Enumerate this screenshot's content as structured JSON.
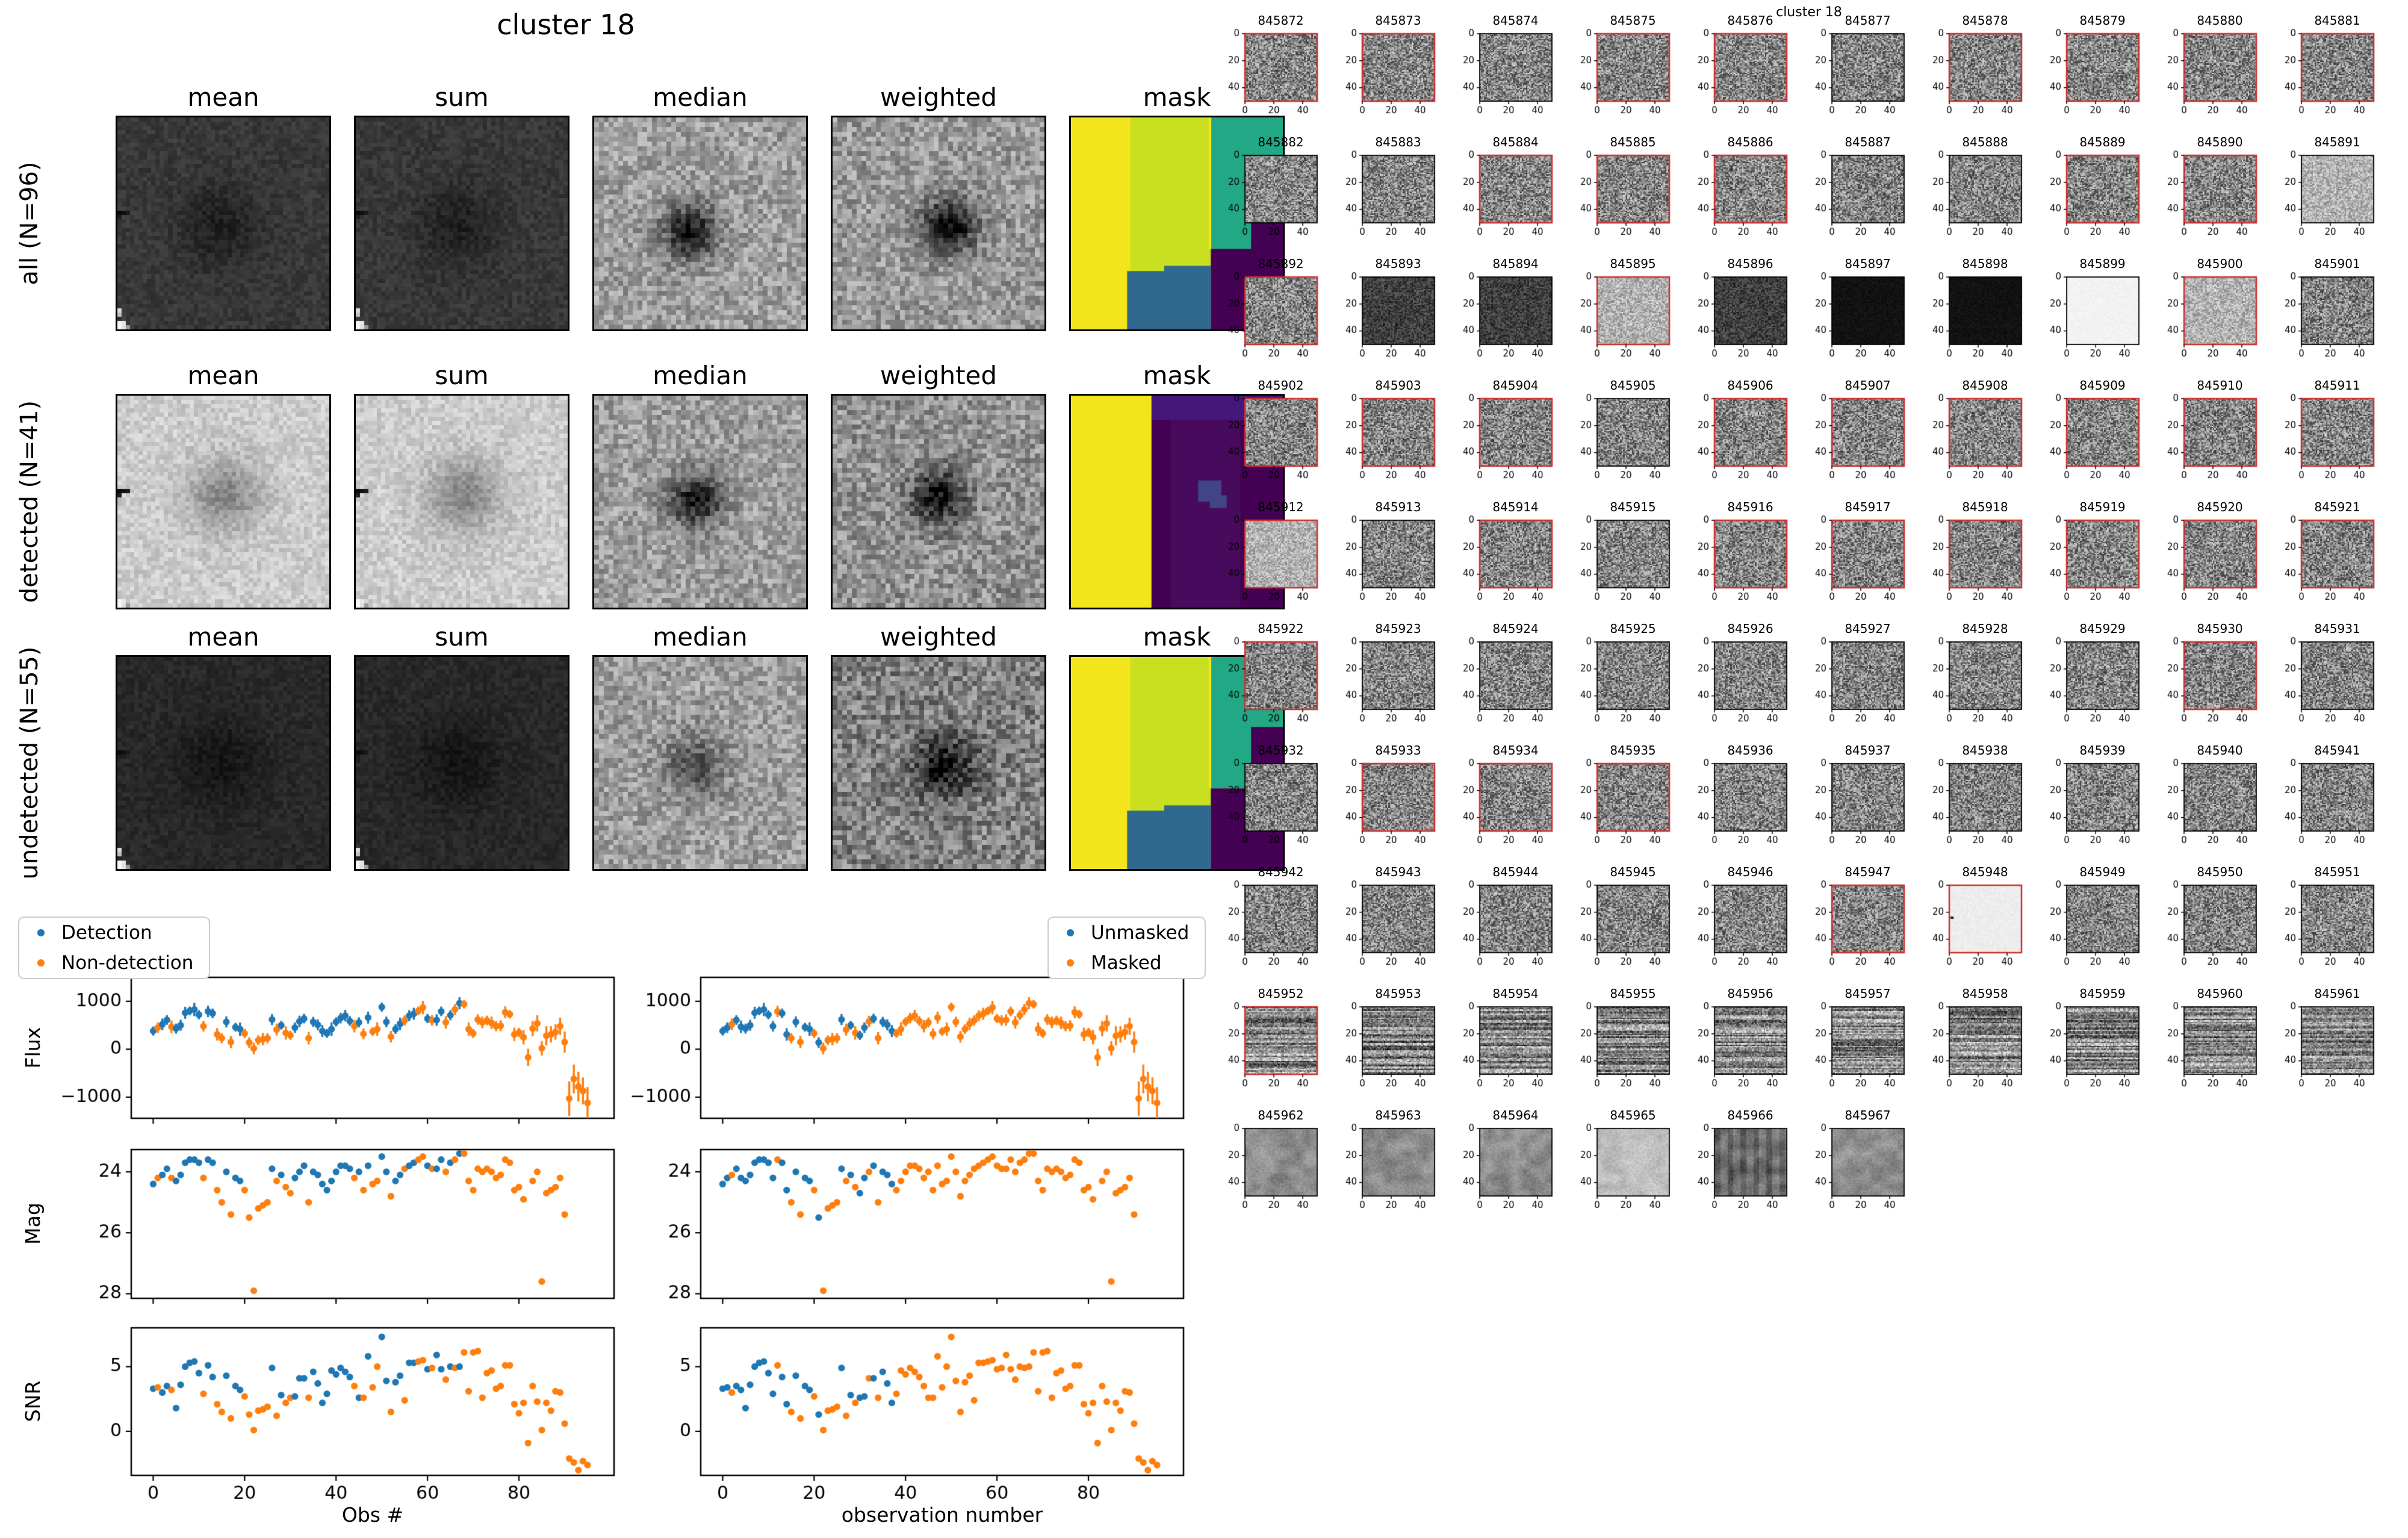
{
  "figures": {
    "stack": {
      "title": "cluster 18",
      "col_headers": [
        "mean",
        "sum",
        "median",
        "weighted",
        "mask"
      ],
      "rows": [
        {
          "label": "all (N=96)",
          "cells": [
            "meanAll",
            "meanAll",
            "medianAll",
            "weightedAll",
            "maskA"
          ]
        },
        {
          "label": "detected (N=41)",
          "cells": [
            "meanDet",
            "meanDet",
            "medianDet",
            "weightedDet",
            "maskB"
          ]
        },
        {
          "label": "undetected (N=55)",
          "cells": [
            "meanUnd",
            "meanUnd",
            "medianUnd",
            "weightedUnd",
            "maskA"
          ]
        }
      ]
    },
    "grid": {
      "title": "cluster 18",
      "xticks": [
        0,
        20,
        40
      ],
      "yticks": [
        0,
        20,
        40
      ],
      "tiles": [
        [
          "845872",
          1
        ],
        [
          "845873",
          1
        ],
        [
          "845874",
          0
        ],
        [
          "845875",
          1
        ],
        [
          "845876",
          1
        ],
        [
          "845877",
          0
        ],
        [
          "845878",
          1
        ],
        [
          "845879",
          1
        ],
        [
          "845880",
          1
        ],
        [
          "845881",
          1
        ],
        [
          "845882",
          0
        ],
        [
          "845883",
          0
        ],
        [
          "845884",
          1
        ],
        [
          "845885",
          1
        ],
        [
          "845886",
          1
        ],
        [
          "845887",
          0
        ],
        [
          "845888",
          0
        ],
        [
          "845889",
          1
        ],
        [
          "845890",
          1
        ],
        [
          "845891",
          0,
          "l"
        ],
        [
          "845892",
          1
        ],
        [
          "845893",
          0,
          "nd"
        ],
        [
          "845894",
          0,
          "nd"
        ],
        [
          "845895",
          1,
          "l"
        ],
        [
          "845896",
          0,
          "nd"
        ],
        [
          "845897",
          0,
          "k"
        ],
        [
          "845898",
          0,
          "k"
        ],
        [
          "845899",
          0,
          "w"
        ],
        [
          "845900",
          1,
          "l"
        ],
        [
          "845901",
          0
        ],
        [
          "845902",
          1
        ],
        [
          "845903",
          1
        ],
        [
          "845904",
          1
        ],
        [
          "845905",
          0
        ],
        [
          "845906",
          1
        ],
        [
          "845907",
          1
        ],
        [
          "845908",
          1
        ],
        [
          "845909",
          1
        ],
        [
          "845910",
          1
        ],
        [
          "845911",
          1
        ],
        [
          "845912",
          1,
          "l"
        ],
        [
          "845913",
          0
        ],
        [
          "845914",
          1
        ],
        [
          "845915",
          0
        ],
        [
          "845916",
          1
        ],
        [
          "845917",
          1
        ],
        [
          "845918",
          1
        ],
        [
          "845919",
          1
        ],
        [
          "845920",
          1
        ],
        [
          "845921",
          1
        ],
        [
          "845922",
          1
        ],
        [
          "845923",
          0
        ],
        [
          "845924",
          0
        ],
        [
          "845925",
          0
        ],
        [
          "845926",
          0
        ],
        [
          "845927",
          0
        ],
        [
          "845928",
          0
        ],
        [
          "845929",
          0
        ],
        [
          "845930",
          1
        ],
        [
          "845931",
          0
        ],
        [
          "845932",
          0
        ],
        [
          "845933",
          1
        ],
        [
          "845934",
          1
        ],
        [
          "845935",
          1
        ],
        [
          "845936",
          0
        ],
        [
          "845937",
          0
        ],
        [
          "845938",
          0
        ],
        [
          "845939",
          0
        ],
        [
          "845940",
          0
        ],
        [
          "845941",
          0
        ],
        [
          "845942",
          0
        ],
        [
          "845943",
          0
        ],
        [
          "845944",
          0
        ],
        [
          "845945",
          0
        ],
        [
          "845946",
          0
        ],
        [
          "845947",
          1
        ],
        [
          "845948",
          1,
          "ls"
        ],
        [
          "845949",
          0
        ],
        [
          "845950",
          0
        ],
        [
          "845951",
          0
        ],
        [
          "845952",
          1,
          "b"
        ],
        [
          "845953",
          0,
          "b"
        ],
        [
          "845954",
          0,
          "b"
        ],
        [
          "845955",
          0,
          "b"
        ],
        [
          "845956",
          0,
          "b"
        ],
        [
          "845957",
          0,
          "b"
        ],
        [
          "845958",
          0,
          "b"
        ],
        [
          "845959",
          0,
          "b"
        ],
        [
          "845960",
          0,
          "b"
        ],
        [
          "845961",
          0,
          "b"
        ],
        [
          "845962",
          0,
          "sm"
        ],
        [
          "845963",
          0,
          "sm"
        ],
        [
          "845964",
          0,
          "sm"
        ],
        [
          "845965",
          0,
          "sml"
        ],
        [
          "845966",
          0,
          "smd"
        ],
        [
          "845967",
          0,
          "sm"
        ]
      ]
    }
  },
  "chart_data": {
    "type": "scatter",
    "title": "cluster 18",
    "x_is_index": true,
    "n_obs": 96,
    "xlim": [
      -4.8,
      100.8
    ],
    "xticks": [
      0,
      20,
      40,
      60,
      80
    ],
    "columns": [
      {
        "xlabel": "Obs #",
        "flag": "detection",
        "legend": [
          "Detection",
          "Non-detection"
        ]
      },
      {
        "xlabel": "observation number",
        "flag": "unmasked",
        "legend": [
          "Unmasked",
          "Masked"
        ]
      }
    ],
    "panels": [
      {
        "ylabel": "Flux",
        "yticks": [
          1000,
          0,
          -1000
        ],
        "ylim_top": 1500,
        "ylim_bottom": -1441,
        "errorbars": true,
        "series": "flux"
      },
      {
        "ylabel": "Mag",
        "yticks": [
          24,
          26,
          28
        ],
        "ylim_top": 23.27,
        "ylim_bottom": 28.15,
        "errorbars": false,
        "series": "mag"
      },
      {
        "ylabel": "SNR",
        "yticks": [
          5,
          0
        ],
        "ylim_top": 8.0,
        "ylim_bottom": -3.4,
        "errorbars": false,
        "series": "snr"
      }
    ],
    "series": {
      "flux": [
        380,
        450,
        520,
        610,
        470,
        430,
        500,
        760,
        800,
        830,
        720,
        480,
        790,
        750,
        310,
        230,
        570,
        150,
        460,
        420,
        330,
        140,
        15,
        190,
        210,
        230,
        620,
        410,
        500,
        340,
        290,
        450,
        580,
        640,
        230,
        570,
        510,
        380,
        330,
        420,
        570,
        650,
        700,
        590,
        480,
        560,
        320,
        660,
        370,
        420,
        880,
        570,
        260,
        420,
        530,
        600,
        700,
        740,
        800,
        870,
        640,
        600,
        610,
        790,
        560,
        710,
        830,
        960,
        940,
        420,
        330,
        620,
        560,
        600,
        550,
        480,
        490,
        770,
        730,
        310,
        350,
        250,
        -170,
        430,
        540,
        20,
        280,
        310,
        360,
        480,
        150,
        -1030,
        -620,
        -780,
        -870,
        -1120
      ],
      "flux_err": [
        95,
        110,
        120,
        100,
        130,
        105,
        115,
        125,
        90,
        140,
        95,
        110,
        120,
        100,
        130,
        105,
        115,
        125,
        90,
        140,
        95,
        110,
        120,
        100,
        130,
        105,
        115,
        125,
        90,
        140,
        95,
        110,
        120,
        100,
        130,
        105,
        115,
        125,
        90,
        140,
        95,
        110,
        120,
        100,
        130,
        105,
        115,
        125,
        90,
        140,
        95,
        110,
        120,
        100,
        130,
        105,
        115,
        125,
        90,
        140,
        95,
        110,
        120,
        100,
        130,
        105,
        115,
        125,
        90,
        140,
        95,
        110,
        120,
        100,
        130,
        105,
        115,
        125,
        90,
        140,
        95,
        150,
        180,
        160,
        170,
        150,
        200,
        170,
        160,
        180,
        220,
        360,
        300,
        310,
        280,
        330
      ],
      "mag": [
        24.4,
        24.2,
        24.1,
        23.9,
        24.2,
        24.3,
        24.1,
        23.7,
        23.6,
        23.6,
        23.7,
        24.2,
        23.6,
        23.7,
        24.6,
        25.0,
        24.0,
        25.4,
        24.2,
        24.3,
        24.6,
        25.5,
        27.9,
        25.2,
        25.1,
        25.0,
        23.9,
        24.3,
        24.1,
        24.5,
        24.7,
        24.2,
        24.0,
        23.8,
        25.0,
        24.0,
        24.1,
        24.4,
        24.6,
        24.3,
        24.0,
        23.8,
        23.8,
        23.9,
        24.2,
        24.0,
        24.6,
        23.8,
        24.4,
        24.3,
        23.5,
        24.0,
        24.8,
        24.3,
        24.1,
        23.9,
        23.8,
        23.7,
        23.6,
        23.5,
        23.8,
        23.9,
        23.9,
        23.6,
        24.0,
        23.7,
        23.6,
        23.4,
        23.4,
        24.3,
        24.6,
        23.9,
        24.0,
        23.9,
        24.0,
        24.2,
        24.1,
        23.6,
        23.7,
        24.6,
        24.5,
        24.9,
        null,
        24.3,
        24.0,
        27.6,
        24.7,
        24.6,
        24.5,
        24.2,
        25.4,
        null,
        null,
        null,
        null,
        null
      ],
      "snr": [
        3.3,
        3.4,
        3.0,
        3.5,
        3.2,
        1.8,
        3.6,
        5.0,
        5.3,
        5.4,
        4.5,
        2.9,
        5.1,
        4.2,
        2.1,
        1.5,
        4.3,
        1.0,
        3.5,
        3.2,
        2.7,
        1.3,
        0.1,
        1.6,
        1.7,
        1.9,
        4.9,
        1.2,
        2.8,
        2.2,
        2.6,
        2.7,
        4.1,
        4.1,
        2.6,
        4.6,
        3.7,
        2.2,
        2.9,
        4.7,
        4.4,
        4.9,
        4.6,
        4.2,
        3.5,
        2.6,
        2.6,
        5.8,
        3.4,
        5.0,
        7.3,
        3.9,
        1.5,
        3.8,
        4.3,
        2.4,
        5.3,
        5.3,
        5.4,
        5.5,
        4.8,
        4.9,
        5.9,
        4.8,
        4.0,
        5.0,
        4.9,
        5.0,
        6.1,
        3.1,
        6.1,
        6.2,
        2.6,
        4.5,
        4.7,
        3.3,
        3.5,
        5.1,
        5.1,
        2.1,
        1.4,
        2.2,
        -0.9,
        3.5,
        2.3,
        0.1,
        2.2,
        1.6,
        3.1,
        3.0,
        0.6,
        -2.1,
        -2.4,
        -3.0,
        -2.3,
        -2.6
      ]
    },
    "flags": {
      "detection": [
        1,
        0,
        1,
        1,
        0,
        1,
        1,
        1,
        1,
        1,
        1,
        0,
        1,
        1,
        0,
        0,
        1,
        0,
        1,
        1,
        0,
        0,
        0,
        0,
        0,
        0,
        1,
        0,
        1,
        0,
        0,
        1,
        1,
        1,
        0,
        1,
        1,
        1,
        1,
        1,
        1,
        1,
        1,
        1,
        0,
        1,
        0,
        1,
        0,
        0,
        1,
        1,
        0,
        1,
        1,
        0,
        1,
        1,
        0,
        0,
        1,
        0,
        1,
        1,
        0,
        1,
        0,
        1,
        0,
        0,
        0,
        0,
        0,
        0,
        0,
        0,
        0,
        0,
        0,
        0,
        0,
        0,
        0,
        0,
        0,
        0,
        0,
        0,
        0,
        0,
        0,
        0,
        0,
        0,
        0,
        0
      ],
      "unmasked": [
        1,
        1,
        0,
        1,
        1,
        1,
        1,
        1,
        1,
        1,
        1,
        1,
        0,
        1,
        1,
        0,
        1,
        0,
        1,
        1,
        0,
        1,
        0,
        0,
        0,
        0,
        1,
        0,
        1,
        0,
        1,
        1,
        0,
        1,
        0,
        1,
        1,
        1,
        0,
        0,
        0,
        0,
        0,
        0,
        0,
        0,
        0,
        0,
        0,
        0,
        0,
        0,
        0,
        0,
        0,
        0,
        0,
        0,
        0,
        0,
        0,
        0,
        0,
        0,
        0,
        0,
        0,
        0,
        0,
        0,
        0,
        0,
        0,
        0,
        0,
        0,
        0,
        0,
        0,
        0,
        0,
        0,
        0,
        0,
        0,
        0,
        0,
        0,
        0,
        0,
        0,
        0,
        0,
        0,
        0,
        0
      ]
    },
    "point_colors": {
      "blue": "#1f77b4",
      "orange": "#ff7f0e"
    }
  },
  "render": {
    "detected_border_red": "#cd2f2f",
    "spine_black": "#000000",
    "mask_colors": {
      "y": "#f2e51c",
      "g": "#c8e020",
      "t": "#22a884",
      "b": "#31688e",
      "p": "#440154",
      "p2": "#45177b",
      "p3": "#414487",
      "p4": "#470a5c"
    },
    "masks": {
      "maskA": [
        [
          "g",
          0,
          0,
          1,
          1
        ],
        [
          "y",
          0,
          0,
          0.28,
          1
        ],
        [
          "t",
          0.66,
          0,
          0.34,
          0.62
        ],
        [
          "y",
          0.65,
          0,
          0.012,
          0.62
        ],
        [
          "p",
          0.85,
          0.33,
          0.15,
          0.3
        ],
        [
          "p",
          0.66,
          0.62,
          0.34,
          0.38
        ],
        [
          "b",
          0.265,
          0.725,
          0.395,
          0.275
        ],
        [
          "b",
          0.44,
          0.7,
          0.22,
          0.035
        ]
      ],
      "maskB": [
        [
          "p",
          0,
          0,
          1,
          1
        ],
        [
          "p2",
          0.38,
          0,
          0.62,
          0.115
        ],
        [
          "p4",
          0.47,
          0.115,
          0.33,
          0.885
        ],
        [
          "y",
          0,
          0,
          0.38,
          1
        ],
        [
          "p3",
          0.6,
          0.4,
          0.11,
          0.1
        ],
        [
          "p3",
          0.655,
          0.47,
          0.08,
          0.06
        ]
      ]
    },
    "styles": {
      "meanAll": {
        "base": 0.22,
        "amp": 0.05,
        "n": 50,
        "blob": 0.1,
        "bs": 0.13,
        "marks": 1
      },
      "medianAll": {
        "base": 0.62,
        "amp": 0.16,
        "n": 44,
        "blob": 0.55,
        "bs": 0.09,
        "bx": 0.44,
        "by": 0.53
      },
      "weightedAll": {
        "base": 0.6,
        "amp": 0.17,
        "n": 44,
        "blob": 0.6,
        "bs": 0.09,
        "bx": 0.54,
        "by": 0.5
      },
      "meanDet": {
        "base": 0.8,
        "amp": 0.085,
        "n": 50,
        "blob": 0.28,
        "bs": 0.12,
        "bx": 0.5,
        "by": 0.46,
        "marks": 1
      },
      "medianDet": {
        "base": 0.62,
        "amp": 0.16,
        "n": 44,
        "blob": 0.52,
        "bs": 0.09,
        "bx": 0.47,
        "by": 0.48
      },
      "weightedDet": {
        "base": 0.57,
        "amp": 0.18,
        "n": 44,
        "blob": 0.52,
        "bs": 0.09,
        "bx": 0.49,
        "by": 0.47
      },
      "meanUnd": {
        "base": 0.16,
        "amp": 0.04,
        "n": 50,
        "blob": 0.08,
        "bs": 0.14,
        "marks": 1
      },
      "medianUnd": {
        "base": 0.62,
        "amp": 0.16,
        "n": 44,
        "blob": 0.3,
        "bs": 0.1,
        "bx": 0.46,
        "by": 0.5
      },
      "weightedUnd": {
        "base": 0.5,
        "amp": 0.2,
        "n": 44,
        "blob": 0.45,
        "bs": 0.1,
        "bx": 0.52,
        "by": 0.5
      },
      "n": {
        "base": 0.52,
        "amp": 0.3,
        "n": 50
      },
      "l": {
        "base": 0.7,
        "amp": 0.18,
        "n": 50
      },
      "nd": {
        "base": 0.25,
        "amp": 0.14,
        "n": 50
      },
      "k": {
        "base": 0.07,
        "amp": 0.03,
        "n": 50
      },
      "w": {
        "base": 0.95,
        "amp": 0.02,
        "n": 50
      },
      "ls": {
        "base": 0.93,
        "amp": 0.025,
        "n": 50,
        "dot": 1
      },
      "b": {
        "base": 0.52,
        "amp": 0.22,
        "n": 50,
        "band": 1
      },
      "sm": {
        "base": 0.55,
        "amp": 0.1,
        "n": 50,
        "smooth": 1
      },
      "sml": {
        "base": 0.74,
        "amp": 0.06,
        "n": 50,
        "smooth": 1
      },
      "smd": {
        "base": 0.42,
        "amp": 0.12,
        "n": 50,
        "smooth": 1,
        "vband": 1
      }
    }
  }
}
